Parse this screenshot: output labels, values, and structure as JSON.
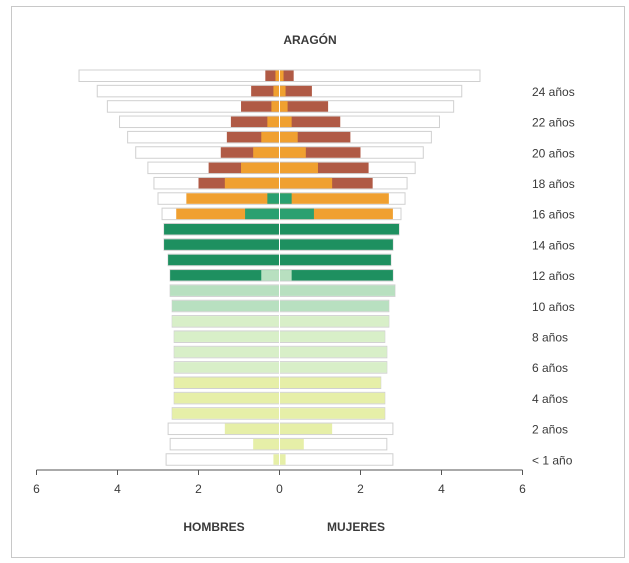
{
  "chart_data": {
    "type": "bar",
    "subtype": "population-pyramid",
    "title": "ARAGÓN",
    "left_label": "HOMBRES",
    "right_label": "MUJERES",
    "x_ticks": [
      6,
      4,
      2,
      0,
      2,
      4,
      6
    ],
    "xlim": [
      -6,
      6
    ],
    "age_tick_labels": [
      "24 años",
      "22 años",
      "20 años",
      "18 años",
      "16 años",
      "14 años",
      "12 años",
      "10 años",
      "8 años",
      "6 años",
      "4 años",
      "2 años",
      "< 1 año"
    ],
    "legend": "none",
    "grid": false,
    "colors": {
      "outline": "#d0d0d0",
      "brown": "#b05a45",
      "orange": "#f0a030",
      "dark_green": "#1e9060",
      "mid_green": "#2aa070",
      "light_green": "#b8e0c0",
      "pale_green": "#d8efc8",
      "yellow_green": "#e6efa8"
    },
    "series": [
      {
        "age": 25,
        "men_total": 4.95,
        "women_total": 4.95,
        "colored": [
          {
            "men": 0.35,
            "women": 0.35,
            "color": "brown"
          },
          {
            "men": 0.1,
            "women": 0.1,
            "color": "orange"
          }
        ]
      },
      {
        "age": 24,
        "men_total": 4.5,
        "women_total": 4.5,
        "colored": [
          {
            "men": 0.7,
            "women": 0.8,
            "color": "brown"
          },
          {
            "men": 0.15,
            "women": 0.15,
            "color": "orange"
          }
        ]
      },
      {
        "age": 23,
        "men_total": 4.25,
        "women_total": 4.3,
        "colored": [
          {
            "men": 0.95,
            "women": 1.2,
            "color": "brown"
          },
          {
            "men": 0.2,
            "women": 0.2,
            "color": "orange"
          }
        ]
      },
      {
        "age": 22,
        "men_total": 3.95,
        "women_total": 3.95,
        "colored": [
          {
            "men": 1.2,
            "women": 1.5,
            "color": "brown"
          },
          {
            "men": 0.3,
            "women": 0.3,
            "color": "orange"
          }
        ]
      },
      {
        "age": 21,
        "men_total": 3.75,
        "women_total": 3.75,
        "colored": [
          {
            "men": 1.3,
            "women": 1.75,
            "color": "brown"
          },
          {
            "men": 0.45,
            "women": 0.45,
            "color": "orange"
          }
        ]
      },
      {
        "age": 20,
        "men_total": 3.55,
        "women_total": 3.55,
        "colored": [
          {
            "men": 1.45,
            "women": 2.0,
            "color": "brown"
          },
          {
            "men": 0.65,
            "women": 0.65,
            "color": "orange"
          }
        ]
      },
      {
        "age": 19,
        "men_total": 3.25,
        "women_total": 3.35,
        "colored": [
          {
            "men": 1.75,
            "women": 2.2,
            "color": "brown"
          },
          {
            "men": 0.95,
            "women": 0.95,
            "color": "orange"
          }
        ]
      },
      {
        "age": 18,
        "men_total": 3.1,
        "women_total": 3.15,
        "colored": [
          {
            "men": 2.0,
            "women": 2.3,
            "color": "brown"
          },
          {
            "men": 1.35,
            "women": 1.3,
            "color": "orange"
          }
        ]
      },
      {
        "age": 17,
        "men_total": 3.0,
        "women_total": 3.1,
        "colored": [
          {
            "men": 2.3,
            "women": 2.7,
            "color": "orange"
          },
          {
            "men": 0.3,
            "women": 0.3,
            "color": "mid_green"
          }
        ]
      },
      {
        "age": 16,
        "men_total": 2.9,
        "women_total": 3.0,
        "colored": [
          {
            "men": 2.55,
            "women": 2.8,
            "color": "orange"
          },
          {
            "men": 0.85,
            "women": 0.85,
            "color": "mid_green"
          }
        ]
      },
      {
        "age": 15,
        "men_total": 2.85,
        "women_total": 2.95,
        "colored": [
          {
            "men": 2.85,
            "women": 2.95,
            "color": "dark_green"
          }
        ]
      },
      {
        "age": 14,
        "men_total": 2.85,
        "women_total": 2.8,
        "colored": [
          {
            "men": 2.85,
            "women": 2.8,
            "color": "dark_green"
          }
        ]
      },
      {
        "age": 13,
        "men_total": 2.75,
        "women_total": 2.75,
        "colored": [
          {
            "men": 2.75,
            "women": 2.75,
            "color": "dark_green"
          }
        ]
      },
      {
        "age": 12,
        "men_total": 2.7,
        "women_total": 2.8,
        "colored": [
          {
            "men": 2.7,
            "women": 2.8,
            "color": "dark_green"
          },
          {
            "men": 0.45,
            "women": 0.3,
            "color": "light_green"
          }
        ]
      },
      {
        "age": 11,
        "men_total": 2.7,
        "women_total": 2.85,
        "colored": [
          {
            "men": 2.7,
            "women": 2.85,
            "color": "light_green"
          }
        ]
      },
      {
        "age": 10,
        "men_total": 2.65,
        "women_total": 2.7,
        "colored": [
          {
            "men": 2.65,
            "women": 2.7,
            "color": "light_green"
          }
        ]
      },
      {
        "age": 9,
        "men_total": 2.65,
        "women_total": 2.7,
        "colored": [
          {
            "men": 2.65,
            "women": 2.7,
            "color": "pale_green"
          }
        ]
      },
      {
        "age": 8,
        "men_total": 2.6,
        "women_total": 2.6,
        "colored": [
          {
            "men": 2.6,
            "women": 2.6,
            "color": "pale_green"
          }
        ]
      },
      {
        "age": 7,
        "men_total": 2.6,
        "women_total": 2.65,
        "colored": [
          {
            "men": 2.6,
            "women": 2.65,
            "color": "pale_green"
          }
        ]
      },
      {
        "age": 6,
        "men_total": 2.6,
        "women_total": 2.65,
        "colored": [
          {
            "men": 2.6,
            "women": 2.65,
            "color": "pale_green"
          }
        ]
      },
      {
        "age": 5,
        "men_total": 2.6,
        "women_total": 2.5,
        "colored": [
          {
            "men": 2.6,
            "women": 2.5,
            "color": "yellow_green"
          }
        ]
      },
      {
        "age": 4,
        "men_total": 2.6,
        "women_total": 2.6,
        "colored": [
          {
            "men": 2.6,
            "women": 2.6,
            "color": "yellow_green"
          }
        ]
      },
      {
        "age": 3,
        "men_total": 2.65,
        "women_total": 2.6,
        "colored": [
          {
            "men": 2.65,
            "women": 2.6,
            "color": "yellow_green"
          }
        ]
      },
      {
        "age": 2,
        "men_total": 2.75,
        "women_total": 2.8,
        "colored": [
          {
            "men": 1.35,
            "women": 1.3,
            "color": "yellow_green"
          }
        ]
      },
      {
        "age": 1,
        "men_total": 2.7,
        "women_total": 2.65,
        "colored": [
          {
            "men": 0.65,
            "women": 0.6,
            "color": "yellow_green"
          }
        ]
      },
      {
        "age": 0,
        "men_total": 2.8,
        "women_total": 2.8,
        "colored": [
          {
            "men": 0.15,
            "women": 0.15,
            "color": "yellow_green"
          }
        ]
      }
    ]
  }
}
